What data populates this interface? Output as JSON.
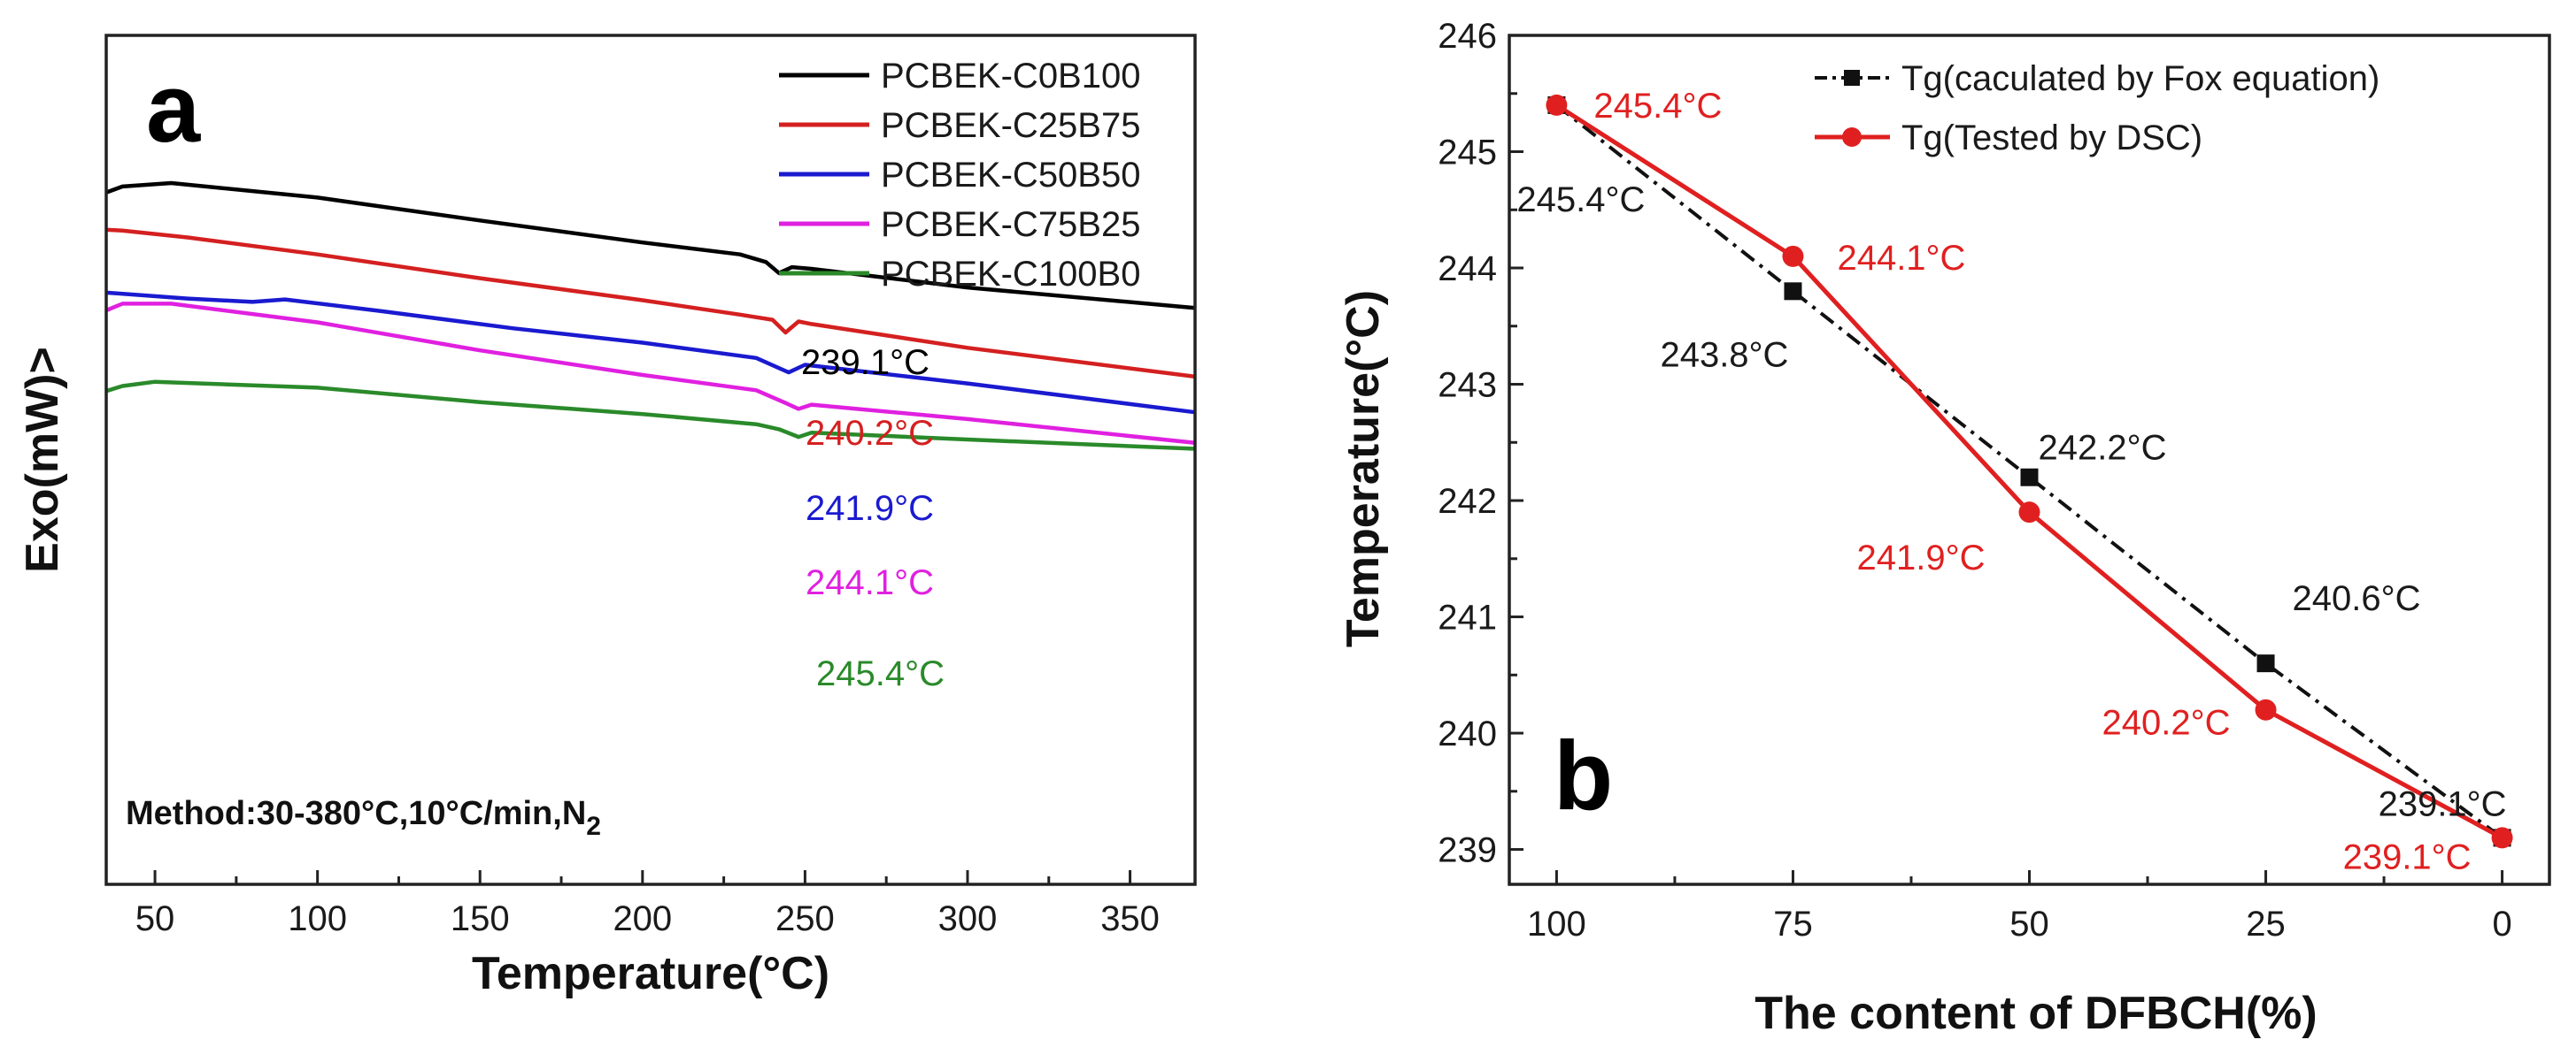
{
  "chart_data": [
    {
      "panel": "a",
      "type": "line",
      "xlabel": "Temperature(°C)",
      "ylabel": "Exo(mW)>",
      "xlim": [
        35,
        370
      ],
      "xticks": [
        50,
        100,
        150,
        200,
        250,
        300,
        350
      ],
      "yaxis_numeric": false,
      "method_note": "Method:30-380°C,10°C/min,N",
      "method_subscript": "2",
      "series": [
        {
          "name": "PCBEK-C0B100",
          "color": "#000000",
          "tg": 239.1,
          "tg_label": "239.1°C",
          "y": [
            [
              35,
              0.815
            ],
            [
              40,
              0.822
            ],
            [
              55,
              0.826
            ],
            [
              100,
              0.809
            ],
            [
              150,
              0.782
            ],
            [
              200,
              0.756
            ],
            [
              230,
              0.742
            ],
            [
              238,
              0.733
            ],
            [
              242,
              0.72
            ],
            [
              246,
              0.727
            ],
            [
              252,
              0.725
            ],
            [
              300,
              0.703
            ],
            [
              370,
              0.679
            ]
          ]
        },
        {
          "name": "PCBEK-C25B75",
          "color": "#d42020",
          "tg": 240.2,
          "tg_label": "240.2°C",
          "y": [
            [
              35,
              0.771
            ],
            [
              40,
              0.77
            ],
            [
              60,
              0.762
            ],
            [
              100,
              0.742
            ],
            [
              150,
              0.714
            ],
            [
              200,
              0.688
            ],
            [
              230,
              0.671
            ],
            [
              240,
              0.665
            ],
            [
              244,
              0.65
            ],
            [
              248,
              0.663
            ],
            [
              252,
              0.66
            ],
            [
              300,
              0.632
            ],
            [
              370,
              0.598
            ]
          ]
        },
        {
          "name": "PCBEK-C50B50",
          "color": "#1a1ad0",
          "tg": 241.9,
          "tg_label": "241.9°C",
          "y": [
            [
              35,
              0.697
            ],
            [
              60,
              0.69
            ],
            [
              80,
              0.686
            ],
            [
              90,
              0.689
            ],
            [
              120,
              0.675
            ],
            [
              160,
              0.655
            ],
            [
              200,
              0.638
            ],
            [
              235,
              0.62
            ],
            [
              245,
              0.603
            ],
            [
              250,
              0.612
            ],
            [
              300,
              0.59
            ],
            [
              370,
              0.556
            ]
          ]
        },
        {
          "name": "PCBEK-C75B25",
          "color": "#e020e0",
          "tg": 244.1,
          "tg_label": "244.1°C",
          "y": [
            [
              35,
              0.676
            ],
            [
              40,
              0.684
            ],
            [
              55,
              0.684
            ],
            [
              100,
              0.662
            ],
            [
              150,
              0.629
            ],
            [
              200,
              0.6
            ],
            [
              235,
              0.582
            ],
            [
              244,
              0.567
            ],
            [
              248,
              0.56
            ],
            [
              252,
              0.565
            ],
            [
              300,
              0.548
            ],
            [
              370,
              0.52
            ]
          ]
        },
        {
          "name": "PCBEK-C100B0",
          "color": "#2a8a2a",
          "tg": 245.4,
          "tg_label": "245.4°C",
          "y": [
            [
              35,
              0.581
            ],
            [
              40,
              0.587
            ],
            [
              50,
              0.592
            ],
            [
              100,
              0.585
            ],
            [
              150,
              0.568
            ],
            [
              200,
              0.554
            ],
            [
              235,
              0.542
            ],
            [
              242,
              0.536
            ],
            [
              248,
              0.527
            ],
            [
              252,
              0.532
            ],
            [
              300,
              0.524
            ],
            [
              370,
              0.513
            ]
          ]
        }
      ]
    },
    {
      "panel": "b",
      "type": "line",
      "xlabel": "The content of DFBCH(%)",
      "ylabel": "Temperature(°C)",
      "x_reversed": true,
      "xlim": [
        105,
        -5
      ],
      "ylim": [
        238.7,
        246.0
      ],
      "xticks": [
        100,
        75,
        50,
        25,
        0
      ],
      "yticks": [
        239,
        240,
        241,
        242,
        243,
        244,
        245,
        246
      ],
      "series": [
        {
          "name": "Tg(caculated by Fox equation)",
          "marker": "square",
          "style": "dash-dot",
          "color": "#111111",
          "x": [
            100,
            75,
            50,
            25,
            0
          ],
          "values": [
            245.4,
            243.8,
            242.2,
            240.6,
            239.1
          ],
          "labels": [
            "245.4°C",
            "243.8°C",
            "242.2°C",
            "240.6°C",
            "239.1°C"
          ]
        },
        {
          "name": "Tg(Tested by DSC)",
          "marker": "circle",
          "style": "solid",
          "color": "#e02020",
          "x": [
            100,
            75,
            50,
            25,
            0
          ],
          "values": [
            245.4,
            244.1,
            241.9,
            240.2,
            239.1
          ],
          "labels": [
            "245.4°C",
            "244.1°C",
            "241.9°C",
            "240.2°C",
            "239.1°C"
          ]
        }
      ]
    }
  ]
}
